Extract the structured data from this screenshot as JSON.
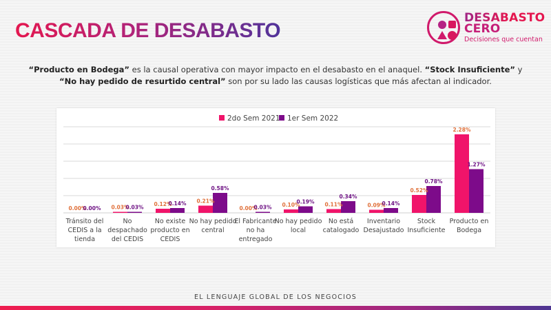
{
  "header": {
    "title": "CASCADA DE DESABASTO",
    "logo": {
      "icon": "shapes-circle-icon",
      "line1": "DESABASTO",
      "line2": "CERO",
      "tagline": "Decisiones que cuentan"
    }
  },
  "subtitle": {
    "p1_bold": "“Producto en Bodega”",
    "p1": " es la causal operativa con mayor impacto en el desabasto en el anaquel. ",
    "p2_bold": "“Stock Insuficiente”",
    "p2": " y ",
    "p3_bold": "“No hay pedido de resurtido central”",
    "p3": " son por su lado las causas logísticas que más afectan al indicador."
  },
  "footer": {
    "tagline": "EL LENGUAJE GLOBAL DE LOS NEGOCIOS"
  },
  "colors": {
    "series1": "#f0146a",
    "series2": "#7d0b8a",
    "label1": "#e0703a",
    "label2": "#6e1284",
    "grid": "#d9d9d9"
  },
  "chart_data": {
    "type": "bar",
    "title": "",
    "xlabel": "",
    "ylabel": "",
    "ylim": [
      0,
      2.5
    ],
    "y_gridlines": [
      0.5,
      1.0,
      1.5,
      2.0,
      2.5
    ],
    "y_unit": "%",
    "grid": true,
    "legend_position": "top-center",
    "categories": [
      [
        "Tránsito del",
        "CEDIS a la",
        "tienda"
      ],
      [
        "No",
        "despachado",
        "del CEDIS"
      ],
      [
        "No existe",
        "producto en",
        "CEDIS"
      ],
      [
        "No hay pedido",
        "central"
      ],
      [
        "El Fabricante",
        "no ha",
        "entregado"
      ],
      [
        "No hay pedido",
        "local"
      ],
      [
        "No está",
        "catalogado"
      ],
      [
        "Inventario",
        "Desajustado"
      ],
      [
        "Stock",
        "Insuficiente"
      ],
      [
        "Producto en",
        "Bodega"
      ]
    ],
    "series": [
      {
        "name": "2do Sem 2021",
        "values": [
          0.0,
          0.03,
          0.12,
          0.21,
          0.0,
          0.1,
          0.11,
          0.09,
          0.52,
          2.28
        ],
        "labels": [
          "0.00%",
          "0.03%",
          "0.12%",
          "0.21%",
          "0.00%",
          "0.10%",
          "0.11%",
          "0.09%",
          "0.52%",
          "2.28%"
        ]
      },
      {
        "name": "1er Sem 2022",
        "values": [
          0.0,
          0.03,
          0.14,
          0.58,
          0.03,
          0.19,
          0.34,
          0.14,
          0.78,
          1.27
        ],
        "labels": [
          "0.00%",
          "0.03%",
          "0.14%",
          "0.58%",
          "0.03%",
          "0.19%",
          "0.34%",
          "0.14%",
          "0.78%",
          "1.27%"
        ]
      }
    ]
  }
}
